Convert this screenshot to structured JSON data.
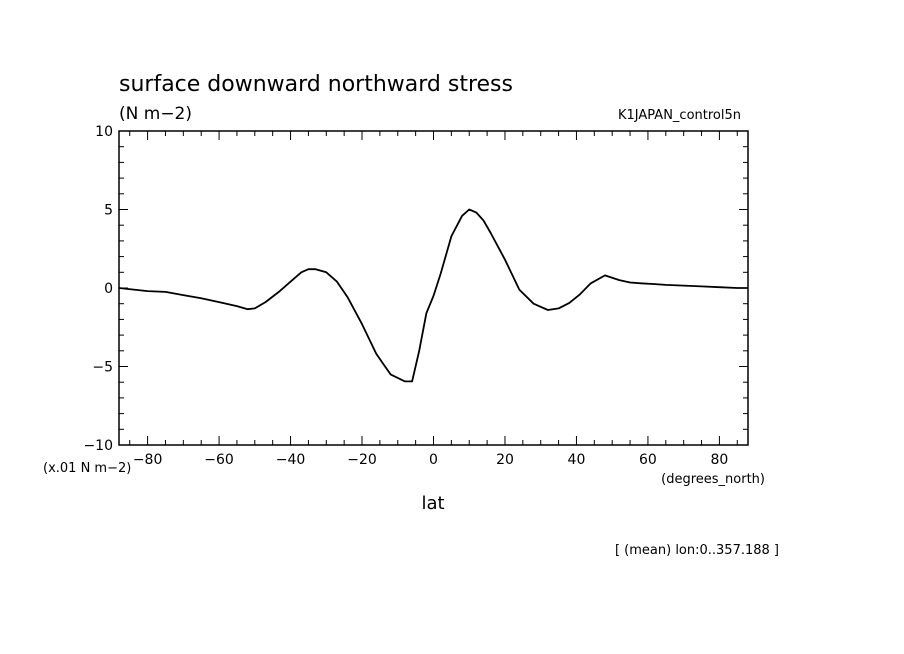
{
  "title": "surface downward northward stress",
  "units": "(N m−2)",
  "dataset": "K1JAPAN_control5n",
  "scale_note": "(x.01 N m−2)",
  "x_units": "(degrees_north)",
  "xlabel": "lat",
  "footer": "[ (mean) lon:0..357.188 ]",
  "chart_data": {
    "type": "line",
    "xlim": [
      -88,
      88
    ],
    "ylim": [
      -10,
      10
    ],
    "x_ticks": [
      -80,
      -60,
      -40,
      -20,
      0,
      20,
      40,
      60,
      80
    ],
    "x_tick_labels": [
      "−80",
      "−60",
      "−40",
      "−20",
      "0",
      "20",
      "40",
      "60",
      "80"
    ],
    "y_ticks": [
      -10,
      -5,
      0,
      5,
      10
    ],
    "y_tick_labels": [
      "−10",
      "−5",
      "0",
      "5",
      "10"
    ],
    "grid": false,
    "series": [
      {
        "x": [
          -88,
          -80,
          -75,
          -70,
          -65,
          -60,
          -55,
          -52,
          -50,
          -47,
          -43,
          -40,
          -37,
          -35,
          -33,
          -30,
          -27,
          -24,
          -20,
          -16,
          -12,
          -8,
          -6,
          -4,
          -2,
          0,
          2,
          5,
          8,
          10,
          12,
          14,
          16,
          20,
          24,
          28,
          32,
          35,
          38,
          41,
          44,
          48,
          52,
          55,
          58,
          62,
          65,
          70,
          75,
          80,
          85,
          88
        ],
        "y": [
          0.0,
          -0.2,
          -0.25,
          -0.45,
          -0.65,
          -0.9,
          -1.15,
          -1.35,
          -1.3,
          -0.9,
          -0.2,
          0.4,
          1.0,
          1.2,
          1.2,
          1.0,
          0.4,
          -0.6,
          -2.3,
          -4.2,
          -5.5,
          -5.95,
          -5.95,
          -4.0,
          -1.6,
          -0.5,
          0.9,
          3.3,
          4.6,
          5.0,
          4.8,
          4.3,
          3.5,
          1.8,
          -0.1,
          -1.0,
          -1.4,
          -1.3,
          -0.95,
          -0.4,
          0.3,
          0.8,
          0.5,
          0.35,
          0.3,
          0.25,
          0.2,
          0.15,
          0.1,
          0.05,
          0.0,
          0.0
        ]
      }
    ]
  }
}
